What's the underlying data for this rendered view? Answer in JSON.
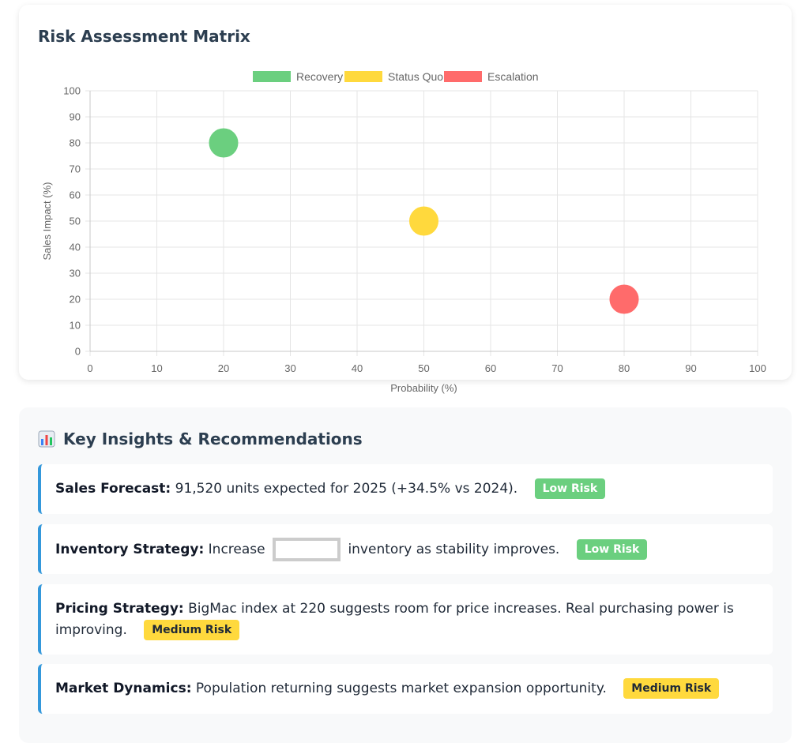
{
  "chart_title": "Risk Assessment Matrix",
  "chart_data": {
    "type": "scatter",
    "title": "Risk Assessment Matrix",
    "xlabel": "Probability (%)",
    "ylabel": "Sales Impact (%)",
    "xlim": [
      0,
      100
    ],
    "ylim": [
      0,
      100
    ],
    "xticks": [
      "0",
      "10",
      "20",
      "30",
      "40",
      "50",
      "60",
      "70",
      "80",
      "90",
      "100"
    ],
    "yticks": [
      "0",
      "10",
      "20",
      "30",
      "40",
      "50",
      "60",
      "70",
      "80",
      "90",
      "100"
    ],
    "grid": true,
    "legend_position": "top-center",
    "series": [
      {
        "name": "Recovery",
        "color": "#6bcf7f",
        "points": [
          {
            "x": 20,
            "y": 80
          }
        ]
      },
      {
        "name": "Status Quo",
        "color": "#ffd93d",
        "points": [
          {
            "x": 50,
            "y": 50
          }
        ]
      },
      {
        "name": "Escalation",
        "color": "#ff6b6b",
        "points": [
          {
            "x": 80,
            "y": 20
          }
        ]
      }
    ]
  },
  "insights": {
    "title": "Key Insights & Recommendations",
    "icon": "bar-chart-icon",
    "items": [
      {
        "label": "Sales Forecast:",
        "text": " 91,520 units expected for 2025 (+34.5% vs 2024).",
        "badge": "Low Risk",
        "level": "low"
      },
      {
        "label": "Inventory Strategy:",
        "text_before": " Increase",
        "text_after": "inventory as stability improves.",
        "badge": "Low Risk",
        "level": "low"
      },
      {
        "label": "Pricing Strategy:",
        "text": " BigMac index at 220 suggests room for price increases. Real purchasing power is improving.",
        "badge": "Medium Risk",
        "level": "medium"
      },
      {
        "label": "Market Dynamics:",
        "text": " Population returning suggests market expansion opportunity.",
        "badge": "Medium Risk",
        "level": "medium"
      }
    ]
  }
}
